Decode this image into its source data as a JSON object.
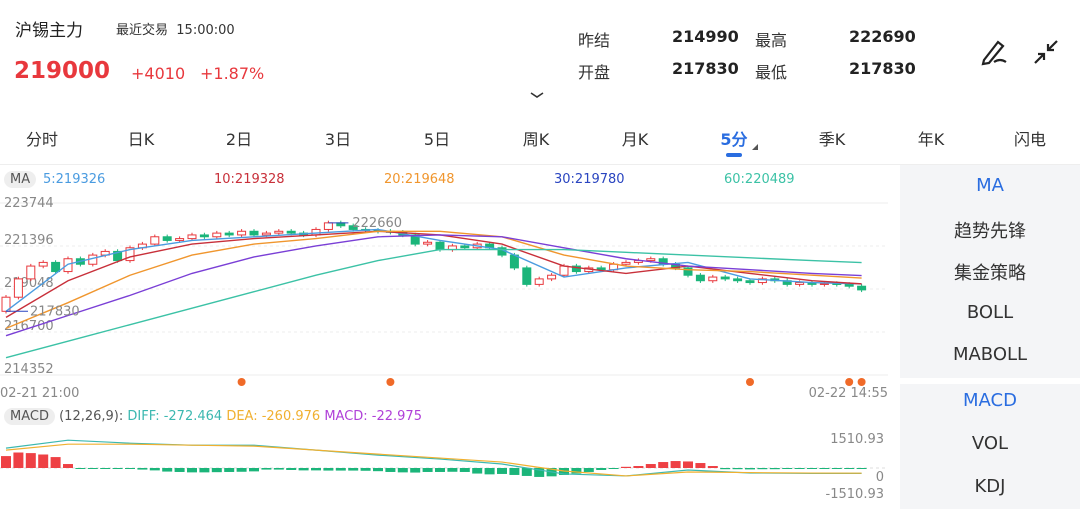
{
  "header": {
    "name": "沪锡主力",
    "last_trade_label": "最近交易",
    "last_trade_time": "15:00:00",
    "price": "219000",
    "change": "+4010",
    "change_pct": "+1.87%",
    "stats": [
      {
        "label": "昨结",
        "value": "214990"
      },
      {
        "label": "最高",
        "value": "222690"
      },
      {
        "label": "开盘",
        "value": "217830"
      },
      {
        "label": "最低",
        "value": "217830"
      }
    ],
    "icons": [
      "draw-icon",
      "collapse-icon",
      "chevron-down-icon"
    ]
  },
  "tabs": [
    {
      "label": "分时"
    },
    {
      "label": "日K"
    },
    {
      "label": "2日"
    },
    {
      "label": "3日"
    },
    {
      "label": "5日"
    },
    {
      "label": "周K"
    },
    {
      "label": "月K"
    },
    {
      "label": "5分",
      "active": true
    },
    {
      "label": "季K"
    },
    {
      "label": "年K"
    },
    {
      "label": "闪电"
    }
  ],
  "colors": {
    "up": "#e8383d",
    "down": "#1bb57a",
    "ma5": "#4a9be0",
    "ma10": "#c8303a",
    "ma20": "#f0962e",
    "ma30": "#7a3fd6",
    "ma60": "#3cc2a6",
    "accent": "#2a6de0"
  },
  "ma_legend": {
    "tag": "MA",
    "ma5": "5:219326",
    "ma10": "10:219328",
    "ma20": "20:219648",
    "ma30": "30:219780",
    "ma60": "60:220489"
  },
  "macd_legend": {
    "tag": "MACD",
    "params": "(12,26,9):",
    "diff": "DIFF: -272.464",
    "dea": "DEA: -260.976",
    "macd": "MACD: -22.975"
  },
  "side": [
    {
      "label": "MA",
      "active": true
    },
    {
      "label": "趋势先锋"
    },
    {
      "label": "集金策略"
    },
    {
      "label": "BOLL"
    },
    {
      "label": "MABOLL"
    },
    {
      "label": "MACD",
      "active": true
    },
    {
      "label": "VOL"
    },
    {
      "label": "KDJ"
    }
  ],
  "chart_data": [
    {
      "type": "candlestick",
      "y_ticks": [
        "223744",
        "221396",
        "219048",
        "216700",
        "214352"
      ],
      "ylim": [
        214352,
        223744
      ],
      "x_start": "02-21 21:00",
      "x_end": "02-22 14:55",
      "max_label": "222660",
      "min_label": "217830",
      "closes": [
        218600,
        219600,
        220300,
        220500,
        220000,
        220700,
        220400,
        220900,
        221100,
        220600,
        221300,
        221500,
        221900,
        221700,
        221800,
        222000,
        221900,
        222100,
        222000,
        222200,
        222000,
        222100,
        222200,
        222100,
        222000,
        222300,
        222660,
        222500,
        222300,
        222250,
        222200,
        222150,
        222000,
        221500,
        221600,
        221200,
        221400,
        221300,
        221500,
        221300,
        220900,
        220200,
        219300,
        219600,
        219800,
        220300,
        220000,
        220200,
        220100,
        220400,
        220500,
        220600,
        220700,
        220400,
        220200,
        219800,
        219500,
        219700,
        219600,
        219500,
        219400,
        219600,
        219500,
        219300,
        219400,
        219300,
        219350,
        219300,
        219200,
        219000
      ],
      "open_first": 217830,
      "ma_index": [
        0,
        5,
        10,
        15,
        20,
        25,
        30,
        35,
        40,
        45,
        50,
        55,
        60,
        65,
        69
      ],
      "ma": {
        "ma5": [
          217830,
          220400,
          221200,
          221700,
          221900,
          222100,
          222300,
          221700,
          221200,
          219700,
          220200,
          220500,
          219600,
          219400,
          219326
        ],
        "ma10": [
          217500,
          219500,
          220800,
          221500,
          221800,
          222000,
          222200,
          222000,
          221500,
          220300,
          219900,
          220300,
          219900,
          219500,
          219328
        ],
        "ma20": [
          216900,
          218300,
          219800,
          220900,
          221500,
          221800,
          222200,
          222200,
          221900,
          220900,
          220300,
          220100,
          220000,
          219800,
          219648
        ],
        "ma30": [
          216500,
          217600,
          218700,
          219900,
          220800,
          221400,
          221900,
          222000,
          221900,
          221300,
          220700,
          220300,
          220100,
          219900,
          219780
        ],
        "ma60": [
          215300,
          216200,
          217100,
          218000,
          218900,
          219800,
          220600,
          221200,
          221200,
          221200,
          221050,
          220900,
          220750,
          220600,
          220489
        ]
      },
      "signal_index": [
        19,
        31,
        60,
        68,
        69
      ]
    },
    {
      "type": "macd",
      "y_ticks": [
        "1510.93",
        "0",
        "-1510.93"
      ],
      "ylim": [
        -1510.93,
        1510.93
      ],
      "hist": [
        600,
        780,
        750,
        680,
        550,
        200,
        -40,
        -50,
        -40,
        -40,
        -10,
        -80,
        -120,
        -180,
        -200,
        -220,
        -220,
        -210,
        -200,
        -190,
        -170,
        -80,
        -80,
        -100,
        -120,
        -120,
        -130,
        -130,
        -130,
        -140,
        -160,
        -200,
        -220,
        -230,
        -200,
        -200,
        -190,
        -200,
        -280,
        -320,
        -300,
        -350,
        -400,
        -450,
        -420,
        -350,
        -280,
        -200,
        -100,
        -30,
        60,
        100,
        200,
        300,
        350,
        330,
        250,
        100,
        -60,
        -60,
        -70,
        -60,
        -60,
        -50,
        -50,
        -40,
        -40,
        -30,
        -30,
        -22.975
      ],
      "line_index": [
        0,
        5,
        10,
        15,
        20,
        25,
        30,
        35,
        40,
        45,
        50,
        55,
        60,
        65,
        69
      ],
      "diff": [
        1000,
        1400,
        1250,
        1150,
        1150,
        900,
        650,
        450,
        200,
        -300,
        -400,
        -100,
        -250,
        -270,
        -272.464
      ],
      "dea": [
        900,
        1200,
        1200,
        1150,
        1100,
        900,
        700,
        500,
        300,
        -150,
        -400,
        -200,
        -230,
        -255,
        -260.976
      ]
    }
  ]
}
